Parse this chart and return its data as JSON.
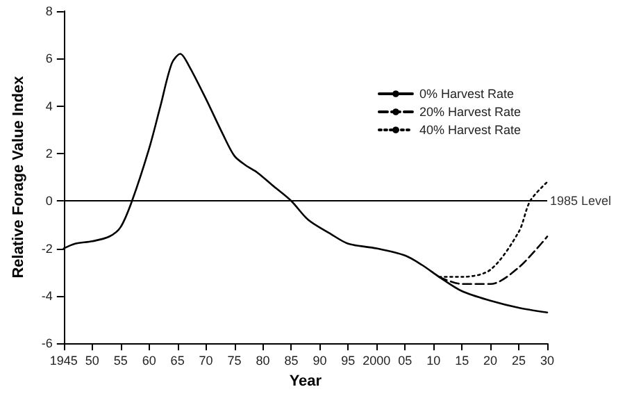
{
  "chart_data": {
    "type": "line",
    "xlabel": "Year",
    "ylabel": "Relative Forage Value Index",
    "xlim": [
      1945,
      2030
    ],
    "xticks": [
      {
        "value": 1945,
        "label": "1945"
      },
      {
        "value": 1950,
        "label": "50"
      },
      {
        "value": 1955,
        "label": "55"
      },
      {
        "value": 1960,
        "label": "60"
      },
      {
        "value": 1965,
        "label": "65"
      },
      {
        "value": 1970,
        "label": "70"
      },
      {
        "value": 1975,
        "label": "75"
      },
      {
        "value": 1980,
        "label": "80"
      },
      {
        "value": 1985,
        "label": "85"
      },
      {
        "value": 1990,
        "label": "90"
      },
      {
        "value": 1995,
        "label": "95"
      },
      {
        "value": 2000,
        "label": "2000"
      },
      {
        "value": 2005,
        "label": "05"
      },
      {
        "value": 2010,
        "label": "10"
      },
      {
        "value": 2015,
        "label": "15"
      },
      {
        "value": 2020,
        "label": "20"
      },
      {
        "value": 2025,
        "label": "25"
      },
      {
        "value": 2030,
        "label": "30"
      }
    ],
    "ylim": [
      -6,
      8
    ],
    "yticks": [
      -6,
      -4,
      -2,
      0,
      2,
      4,
      6,
      8
    ],
    "series": [
      {
        "name": "0% Harvest Rate",
        "color": "#000000",
        "line_style": "solid",
        "x": [
          1945,
          1947,
          1950,
          1953,
          1955,
          1957,
          1960,
          1962,
          1964,
          1965.5,
          1967,
          1970,
          1973,
          1975,
          1977,
          1979,
          1982,
          1985,
          1988,
          1992,
          1995,
          2000,
          2005,
          2008,
          2011,
          2015,
          2020,
          2025,
          2030
        ],
        "values": [
          -2.0,
          -1.8,
          -1.7,
          -1.5,
          -1.1,
          0,
          2.2,
          4.0,
          5.8,
          6.2,
          5.7,
          4.3,
          2.8,
          1.9,
          1.5,
          1.2,
          0.6,
          0,
          -0.8,
          -1.4,
          -1.8,
          -2.0,
          -2.3,
          -2.7,
          -3.2,
          -3.8,
          -4.2,
          -4.5,
          -4.7
        ]
      },
      {
        "name": "20% Harvest Rate",
        "color": "#000000",
        "line_style": "dashed",
        "x": [
          2011,
          2015,
          2020,
          2025,
          2030
        ],
        "values": [
          -3.2,
          -3.5,
          -3.5,
          -2.8,
          -1.5
        ]
      },
      {
        "name": "40% Harvest Rate",
        "color": "#000000",
        "line_style": "dotted",
        "x": [
          2011,
          2015,
          2020,
          2025,
          2027,
          2030
        ],
        "values": [
          -3.2,
          -3.2,
          -2.9,
          -1.3,
          0,
          0.8
        ]
      }
    ],
    "ref_lines": [
      {
        "axis": "y",
        "value": 0,
        "label": "1985 Level",
        "color": "#000000",
        "line_style": "solid"
      }
    ],
    "legend": "top right",
    "grid": false,
    "marker": "none"
  }
}
